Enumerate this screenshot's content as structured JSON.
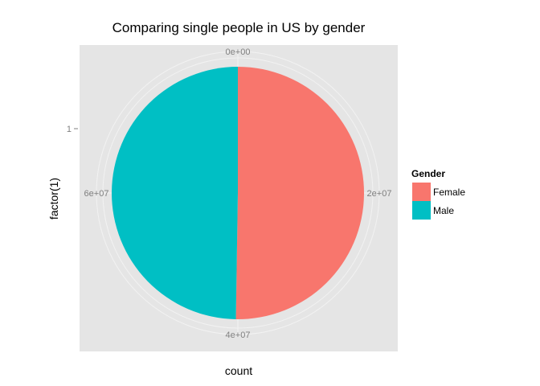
{
  "chart_data": {
    "type": "pie",
    "title": "Comparing single people in US by gender",
    "xlabel": "count",
    "ylabel": "factor(1)",
    "y_tick_labels": [
      "1"
    ],
    "theta_ticks": [
      {
        "value": 0,
        "label": "0e+00"
      },
      {
        "value": 20000000,
        "label": "2e+07"
      },
      {
        "value": 40000000,
        "label": "4e+07"
      },
      {
        "value": 60000000,
        "label": "6e+07"
      }
    ],
    "total": 80000000,
    "slices": [
      {
        "label": "Female",
        "value": 40200000,
        "color": "#F8766D"
      },
      {
        "label": "Male",
        "value": 39800000,
        "color": "#00BFC4"
      }
    ],
    "legend": {
      "title": "Gender",
      "position": "right",
      "items": [
        {
          "label": "Female",
          "color": "#F8766D"
        },
        {
          "label": "Male",
          "color": "#00BFC4"
        }
      ]
    },
    "panel_background": "#E5E5E5",
    "grid_color": "#F2F2F2",
    "grid": true
  }
}
